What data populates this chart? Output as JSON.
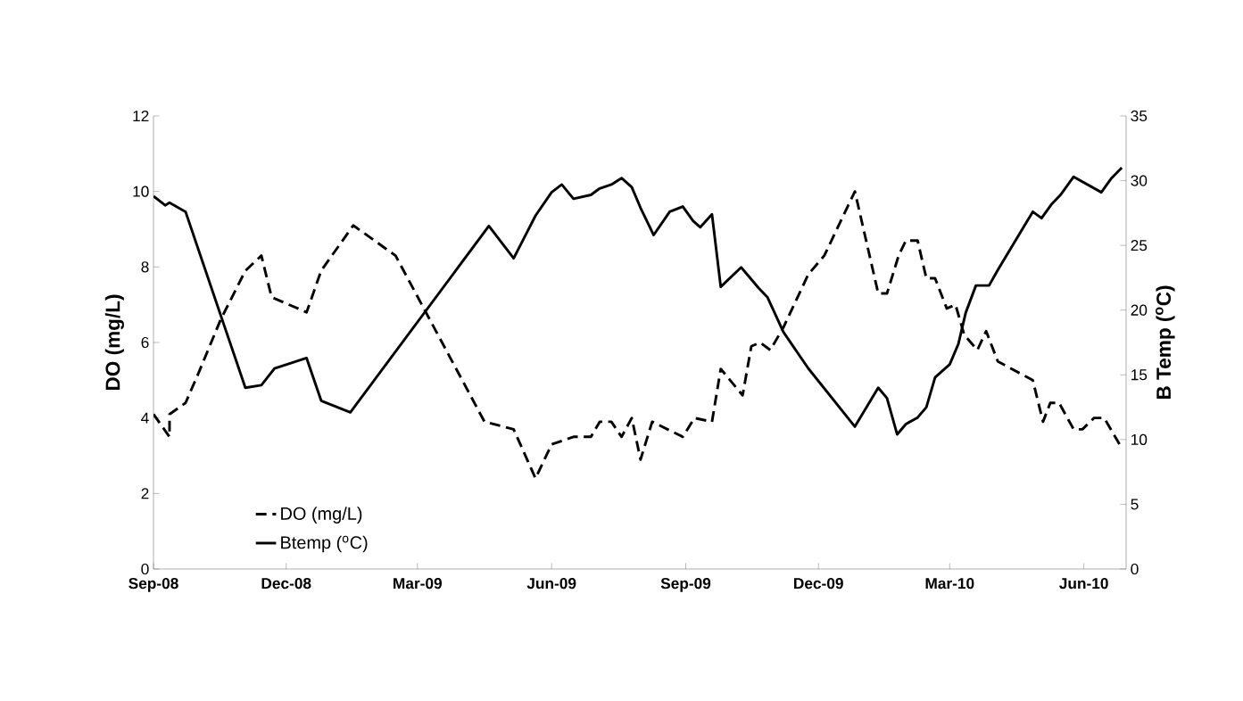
{
  "chart_data": {
    "type": "line",
    "ylabel": "DO (mg/L)",
    "y2label": "B Temp ($^{o}$C)",
    "legend": "bottom left",
    "xlim": [
      "2008-09-01",
      "2010-06-30"
    ],
    "xticks": [
      {
        "value": "2008-09-01",
        "label": "Sep-08"
      },
      {
        "value": "2008-12-01",
        "label": "Dec-08"
      },
      {
        "value": "2009-03-01",
        "label": "Mar-09"
      },
      {
        "value": "2009-06-01",
        "label": "Jun-09"
      },
      {
        "value": "2009-09-01",
        "label": "Sep-09"
      },
      {
        "value": "2009-12-01",
        "label": "Dec-09"
      },
      {
        "value": "2010-03-01",
        "label": "Mar-10"
      },
      {
        "value": "2010-06-01",
        "label": "Jun-10"
      }
    ],
    "ylim": [
      0,
      12
    ],
    "yticks": [
      0,
      2,
      4,
      6,
      8,
      10,
      12
    ],
    "y2lim": [
      0,
      35
    ],
    "y2ticks": [
      0,
      5,
      10,
      15,
      20,
      25,
      30,
      35
    ],
    "series": [
      {
        "name": "DO (mg/L)",
        "color": "#000000",
        "line_style": "dashed",
        "x": [
          "2008-09-01",
          "2008-09-12",
          "2008-09-12",
          "2008-09-23",
          "2008-10-02",
          "2008-10-17",
          "2008-11-03",
          "2008-11-14",
          "2008-11-21",
          "2008-12-15",
          "2008-12-25",
          "2009-01-16",
          "2009-02-14",
          "2009-04-16",
          "2009-05-06",
          "2009-05-21",
          "2009-06-01",
          "2009-06-16",
          "2009-06-28",
          "2009-07-04",
          "2009-07-12",
          "2009-07-19",
          "2009-07-26",
          "2009-08-01",
          "2009-08-09",
          "2009-08-30",
          "2009-09-07",
          "2009-09-19",
          "2009-09-25",
          "2009-10-10",
          "2009-10-16",
          "2009-10-22",
          "2009-10-29",
          "2009-11-07",
          "2009-11-24",
          "2009-12-05",
          "2009-12-26",
          "2010-01-11",
          "2010-01-17",
          "2010-01-25",
          "2010-01-30",
          "2010-02-07",
          "2010-02-13",
          "2010-02-19",
          "2010-02-27",
          "2010-03-05",
          "2010-03-11",
          "2010-03-20",
          "2010-03-26",
          "2010-04-03",
          "2010-04-27",
          "2010-05-04",
          "2010-05-09",
          "2010-05-15",
          "2010-05-25",
          "2010-05-31",
          "2010-06-08",
          "2010-06-15",
          "2010-06-27"
        ],
        "values": [
          4.1,
          3.5,
          4.1,
          4.4,
          5.2,
          6.6,
          7.9,
          8.3,
          7.2,
          6.8,
          7.9,
          9.1,
          8.3,
          3.9,
          3.7,
          2.4,
          3.3,
          3.5,
          3.5,
          3.9,
          3.9,
          3.5,
          4.0,
          2.9,
          3.9,
          3.5,
          4.0,
          3.9,
          5.3,
          4.6,
          5.9,
          6.0,
          5.8,
          6.4,
          7.8,
          8.3,
          10.0,
          7.3,
          7.3,
          8.3,
          8.7,
          8.7,
          7.7,
          7.7,
          6.9,
          7.0,
          6.2,
          5.8,
          6.3,
          5.5,
          5.0,
          3.9,
          4.4,
          4.4,
          3.7,
          3.7,
          4.0,
          4.0,
          3.2
        ]
      },
      {
        "name": "Btemp ($^{o}$C)",
        "color": "#000000",
        "line_style": "solid",
        "axis": "y2",
        "x": [
          "2008-09-01",
          "2008-09-09",
          "2008-09-12",
          "2008-09-23",
          "2008-11-03",
          "2008-11-14",
          "2008-11-23",
          "2008-12-15",
          "2008-12-25",
          "2009-01-14",
          "2009-04-19",
          "2009-05-06",
          "2009-05-21",
          "2009-06-01",
          "2009-06-08",
          "2009-06-16",
          "2009-06-28",
          "2009-07-04",
          "2009-07-12",
          "2009-07-19",
          "2009-07-26",
          "2009-08-01",
          "2009-08-10",
          "2009-08-21",
          "2009-08-30",
          "2009-09-06",
          "2009-09-11",
          "2009-09-19",
          "2009-09-25",
          "2009-10-09",
          "2009-10-21",
          "2009-10-27",
          "2009-11-07",
          "2009-11-24",
          "2009-12-26",
          "2010-01-11",
          "2010-01-17",
          "2010-01-24",
          "2010-01-30",
          "2010-02-07",
          "2010-02-13",
          "2010-02-19",
          "2010-03-01",
          "2010-03-07",
          "2010-03-12",
          "2010-03-19",
          "2010-03-28",
          "2010-04-03",
          "2010-04-27",
          "2010-05-03",
          "2010-05-10",
          "2010-05-16",
          "2010-05-25",
          "2010-06-13",
          "2010-06-20",
          "2010-06-27"
        ],
        "values": [
          28.8,
          28.1,
          28.3,
          27.6,
          14.0,
          14.2,
          15.5,
          16.3,
          13.0,
          12.1,
          26.5,
          24.0,
          27.3,
          29.1,
          29.7,
          28.6,
          28.9,
          29.4,
          29.7,
          30.2,
          29.5,
          27.9,
          25.8,
          27.6,
          28.0,
          26.9,
          26.4,
          27.4,
          21.8,
          23.3,
          21.7,
          21.0,
          18.3,
          15.5,
          11.0,
          14.0,
          13.2,
          10.4,
          11.2,
          11.7,
          12.5,
          14.8,
          15.8,
          17.4,
          19.8,
          21.9,
          21.9,
          23.1,
          27.6,
          27.1,
          28.2,
          28.9,
          30.3,
          29.1,
          30.2,
          31.0
        ]
      }
    ]
  }
}
